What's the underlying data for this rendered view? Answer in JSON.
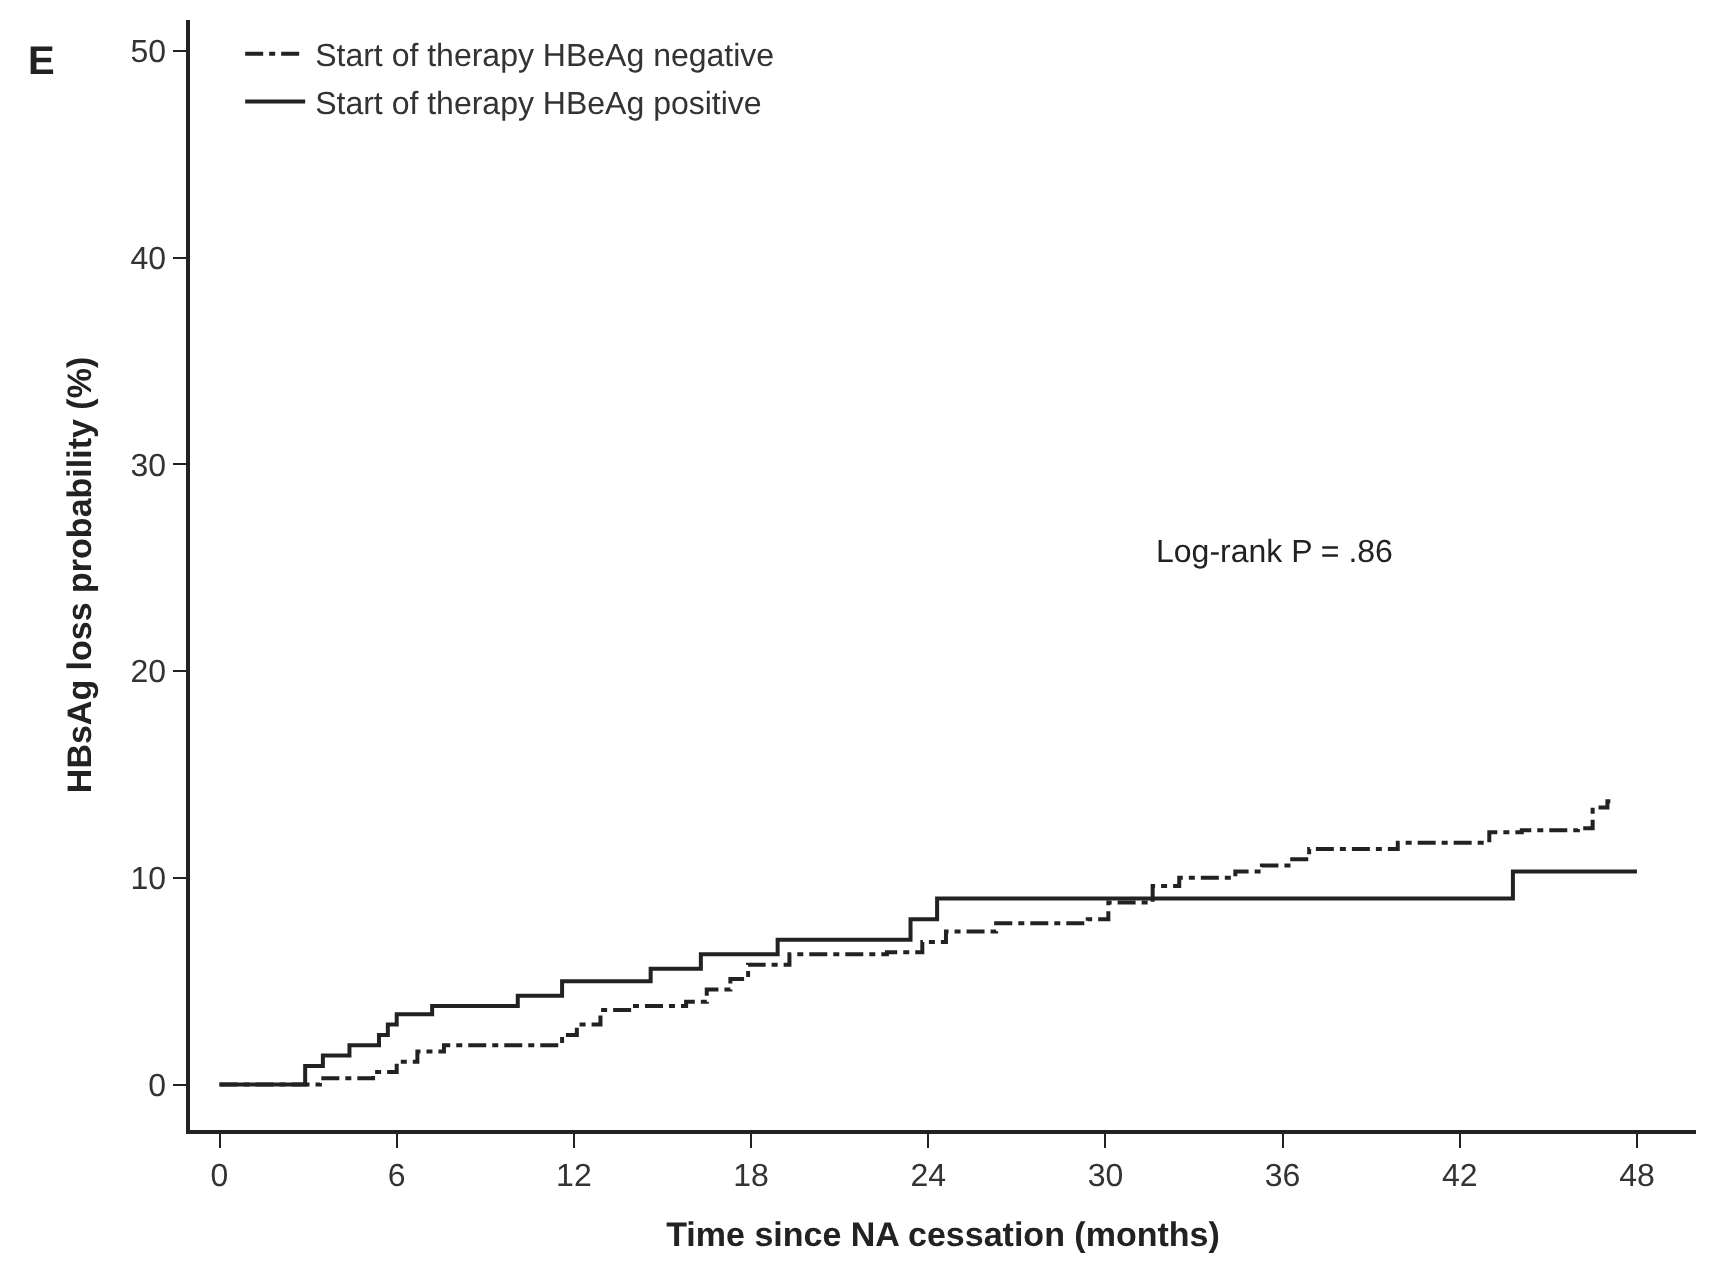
{
  "chart_data": {
    "type": "step",
    "xlabel": "Time since NA cessation (months)",
    "ylabel": "HBsAg loss probability (%)",
    "annotations": [
      "E",
      "Log-rank P = .86"
    ],
    "series": [
      {
        "name": "Start of therapy HBeAg negative",
        "color": "#222222",
        "line_style": "dashdot",
        "x": [
          0,
          3.4,
          5.2,
          6.0,
          6.7,
          7.6,
          11.6,
          12.1,
          12.9,
          14.0,
          15.8,
          16.5,
          17.3,
          17.9,
          19.3,
          22.6,
          23.8,
          24.6,
          26.3,
          29.4,
          30.1,
          31.6,
          32.5,
          34.4,
          35.3,
          36.2,
          36.9,
          39.9,
          43.0,
          44.1,
          46.0,
          46.5,
          47.0,
          47.3
        ],
        "values": [
          0,
          0.3,
          0.6,
          1.1,
          1.6,
          1.9,
          2.4,
          2.9,
          3.6,
          3.8,
          4.0,
          4.6,
          5.1,
          5.8,
          6.3,
          6.4,
          6.9,
          7.4,
          7.8,
          8.0,
          8.8,
          9.6,
          10.0,
          10.3,
          10.6,
          10.9,
          11.4,
          11.7,
          12.2,
          12.3,
          12.4,
          13.4,
          13.7,
          13.7
        ]
      },
      {
        "name": "Start of therapy HBeAg positive",
        "color": "#222222",
        "line_style": "solid",
        "x": [
          0,
          2.9,
          3.5,
          4.4,
          5.4,
          5.7,
          6.0,
          7.2,
          10.1,
          11.6,
          14.6,
          16.3,
          18.9,
          23.4,
          24.3,
          43.8,
          48
        ],
        "values": [
          0,
          0.9,
          1.4,
          1.9,
          2.4,
          2.9,
          3.4,
          3.8,
          4.3,
          5.0,
          5.6,
          6.3,
          7.0,
          8.0,
          9.0,
          10.3,
          10.3
        ]
      }
    ],
    "xlim": [
      -1,
      50
    ],
    "xticks": [
      0,
      6,
      12,
      18,
      24,
      30,
      36,
      42,
      48
    ],
    "ylim": [
      -2.2,
      51.5
    ],
    "yticks": [
      0,
      10,
      20,
      30,
      40,
      50
    ],
    "legend": "top left"
  }
}
